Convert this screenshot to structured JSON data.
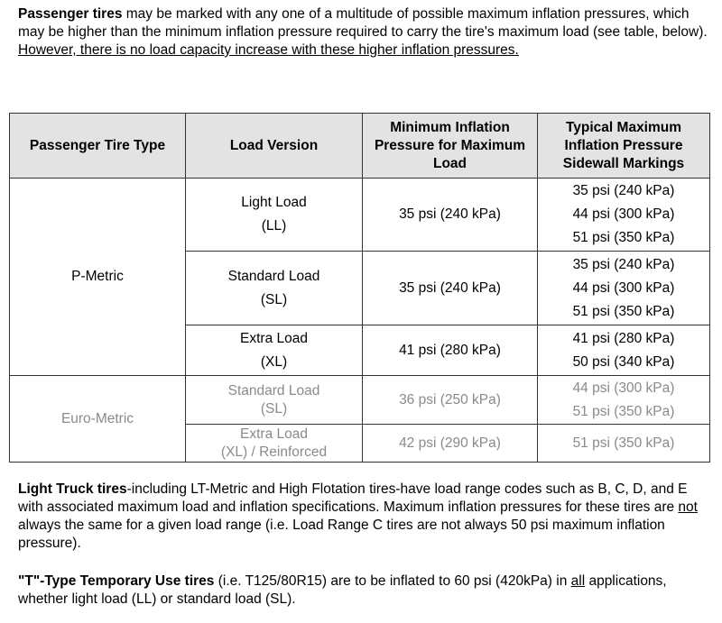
{
  "intro": {
    "bold": "Passenger tires",
    "text": " may be marked with any one of a multitude of possible maximum inflation pressures, which may be higher than the minimum inflation pressure required to carry the tire's maximum load (see table, below).  ",
    "underlined": "However, there is no load capacity increase with these higher inflation pressures."
  },
  "table": {
    "headers": [
      "Passenger Tire Type",
      "Load Version",
      "Minimum Inflation Pressure for Maximum Load",
      "Typical Maximum Inflation Pressure Sidewall Markings"
    ],
    "groups": [
      {
        "type": "P-Metric",
        "rows": [
          {
            "load": "Light Load",
            "code": "(LL)",
            "min": "35 psi (240 kPa)",
            "max": [
              "35 psi (240 kPa)",
              "44 psi (300 kPa)",
              "51 psi (350 kPa)"
            ]
          },
          {
            "load": "Standard Load",
            "code": "(SL)",
            "min": "35 psi (240 kPa)",
            "max": [
              "35 psi (240 kPa)",
              "44 psi (300 kPa)",
              "51 psi (350 kPa)"
            ]
          },
          {
            "load": "Extra Load",
            "code": "(XL)",
            "min": "41 psi (280 kPa)",
            "max": [
              "41 psi (280 kPa)",
              "50 psi (340 kPa)"
            ]
          }
        ]
      },
      {
        "type": "Euro-Metric",
        "rows": [
          {
            "load": "Standard Load",
            "code": "(SL)",
            "min": "36 psi (250 kPa)",
            "max": [
              "44 psi (300 kPa)",
              "51 psi (350 kPa)"
            ]
          },
          {
            "load": "Extra Load",
            "code": "(XL) / Reinforced",
            "min": "42 psi (290 kPa)",
            "max": [
              "51 psi (350 kPa)"
            ]
          }
        ]
      }
    ]
  },
  "light_truck": {
    "bold": "Light Truck tires",
    "text1": "-including LT-Metric and High Flotation tires-have load range codes such as B, C, D, and E with associated maximum load and inflation specifications.  Maximum inflation pressures for these tires are ",
    "underlined": "not",
    "text2": " always the same for a given load range (i.e. Load Range C tires are not always 50 psi maximum inflation pressure)."
  },
  "temporary": {
    "bold": "\"T\"-Type Temporary Use tires",
    "text1": " (i.e. T125/80R15) are to be inflated to 60 psi (420kPa) in ",
    "underlined": "all",
    "text2": " applications, whether light load (LL) or standard load (SL)."
  }
}
